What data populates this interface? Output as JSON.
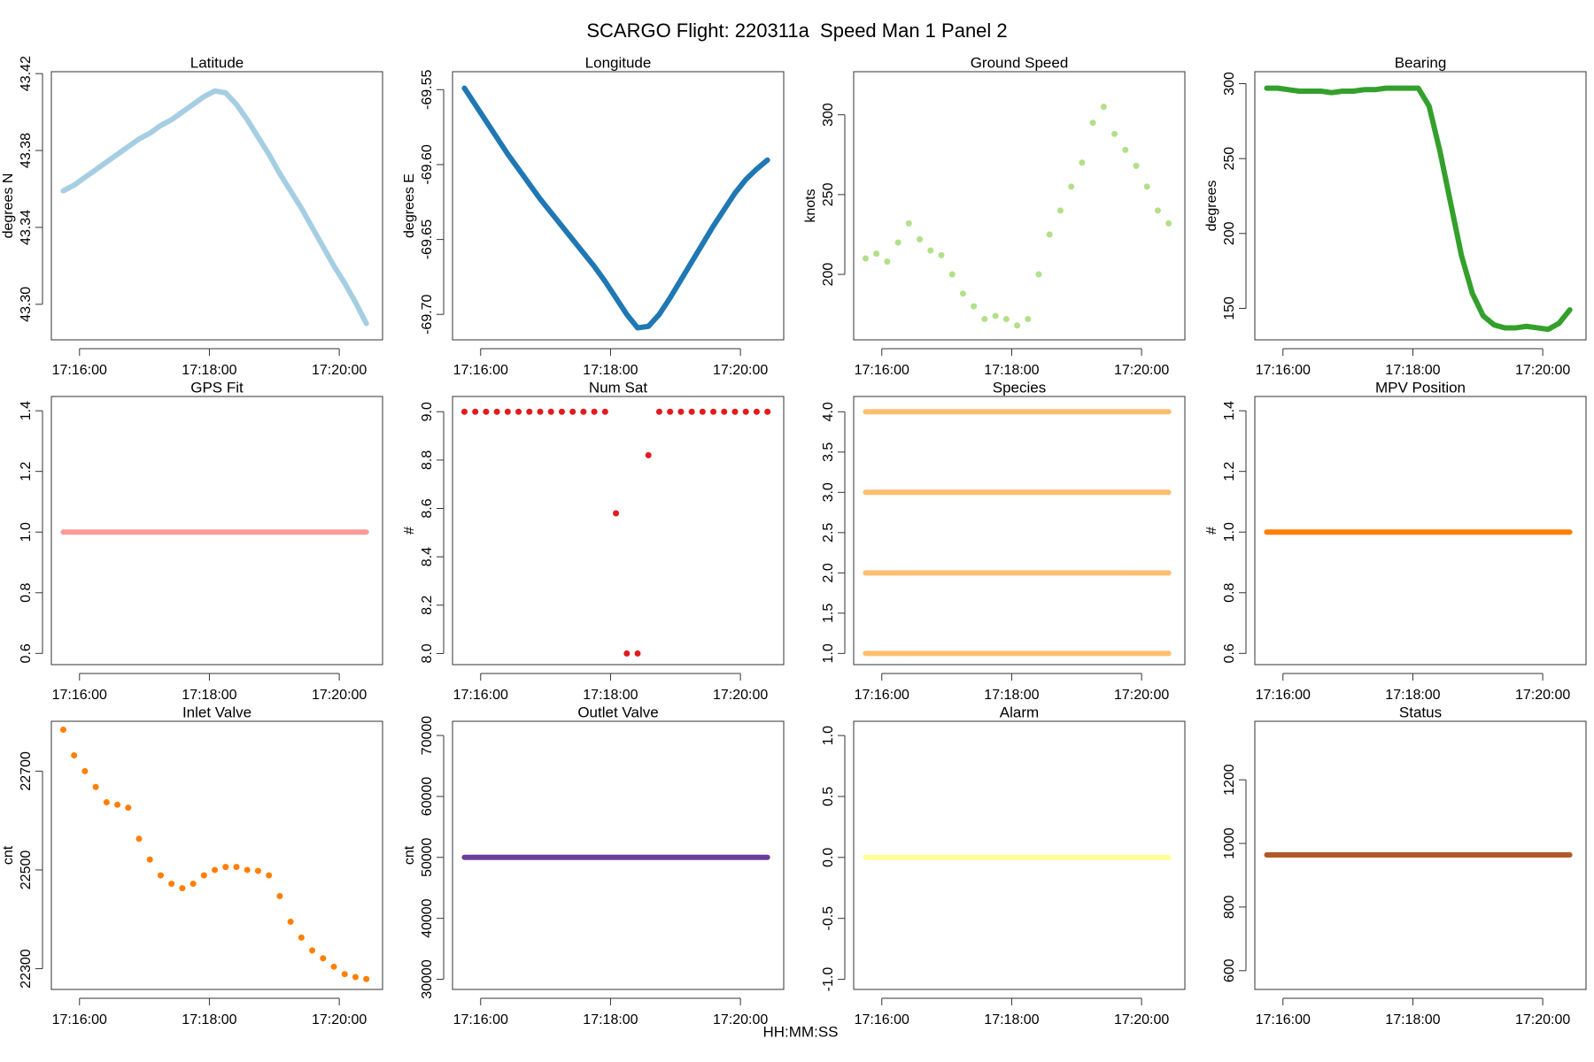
{
  "title": "SCARGO Flight: 220311a  Speed Man 1 Panel 2",
  "xlabel": "HH:MM:SS",
  "chart_data": [
    {
      "type": "line",
      "title": "Latitude",
      "ylabel": "degrees N",
      "color": "#a6cee3",
      "x": [
        "17:15:45",
        "17:15:55",
        "17:16:05",
        "17:16:15",
        "17:16:25",
        "17:16:35",
        "17:16:45",
        "17:16:55",
        "17:17:05",
        "17:17:15",
        "17:17:25",
        "17:17:35",
        "17:17:45",
        "17:17:55",
        "17:18:05",
        "17:18:15",
        "17:18:25",
        "17:18:35",
        "17:18:45",
        "17:18:55",
        "17:19:05",
        "17:19:15",
        "17:19:25",
        "17:19:35",
        "17:19:45",
        "17:19:55",
        "17:20:05",
        "17:20:15",
        "17:20:25"
      ],
      "values": [
        43.359,
        43.362,
        43.366,
        43.37,
        43.374,
        43.378,
        43.382,
        43.386,
        43.389,
        43.393,
        43.396,
        43.4,
        43.404,
        43.408,
        43.411,
        43.41,
        43.404,
        43.396,
        43.387,
        43.378,
        43.368,
        43.359,
        43.35,
        43.34,
        43.33,
        43.32,
        43.311,
        43.301,
        43.29
      ],
      "xlim": [
        "17:15:34",
        "17:20:40"
      ],
      "xticks": [
        "17:16:00",
        "17:18:00",
        "17:20:00"
      ],
      "ylim": [
        43.2815,
        43.421
      ],
      "yticks": [
        {
          "value": 43.3,
          "label": "43.30"
        },
        43.34,
        43.38,
        43.42
      ]
    },
    {
      "type": "line",
      "title": "Longitude",
      "ylabel": "degrees E",
      "color": "#1f78b4",
      "x": [
        "17:15:45",
        "17:15:55",
        "17:16:05",
        "17:16:15",
        "17:16:25",
        "17:16:35",
        "17:16:45",
        "17:16:55",
        "17:17:05",
        "17:17:15",
        "17:17:25",
        "17:17:35",
        "17:17:45",
        "17:17:55",
        "17:18:05",
        "17:18:15",
        "17:18:25",
        "17:18:35",
        "17:18:45",
        "17:18:55",
        "17:19:05",
        "17:19:15",
        "17:19:25",
        "17:19:35",
        "17:19:45",
        "17:19:55",
        "17:20:05",
        "17:20:15",
        "17:20:25"
      ],
      "values": [
        -69.549,
        -69.56,
        -69.571,
        -69.582,
        -69.593,
        -69.603,
        -69.613,
        -69.623,
        -69.632,
        -69.641,
        -69.65,
        -69.659,
        -69.668,
        -69.678,
        -69.689,
        -69.7,
        -69.709,
        -69.708,
        -69.7,
        -69.689,
        -69.677,
        -69.665,
        -69.653,
        -69.641,
        -69.63,
        -69.619,
        -69.61,
        -69.603,
        -69.597
      ],
      "xlim": [
        "17:15:34",
        "17:20:40"
      ],
      "xticks": [
        "17:16:00",
        "17:18:00",
        "17:20:00"
      ],
      "ylim": [
        -69.717,
        -69.538
      ],
      "yticks": [
        {
          "value": -69.7,
          "label": "-69.70"
        },
        -69.65,
        {
          "value": -69.6,
          "label": "-69.60"
        },
        -69.55
      ]
    },
    {
      "type": "scatter",
      "title": "Ground Speed",
      "ylabel": "knots",
      "color": "#b2df8a",
      "x": [
        "17:15:45",
        "17:15:55",
        "17:16:05",
        "17:16:15",
        "17:16:25",
        "17:16:35",
        "17:16:45",
        "17:16:55",
        "17:17:05",
        "17:17:15",
        "17:17:25",
        "17:17:35",
        "17:17:45",
        "17:17:55",
        "17:18:05",
        "17:18:15",
        "17:18:25",
        "17:18:35",
        "17:18:45",
        "17:18:55",
        "17:19:05",
        "17:19:15",
        "17:19:25",
        "17:19:35",
        "17:19:45",
        "17:19:55",
        "17:20:05",
        "17:20:15",
        "17:20:25"
      ],
      "values": [
        210,
        213,
        208,
        220,
        232,
        222,
        215,
        212,
        200,
        188,
        180,
        172,
        174,
        172,
        168,
        172,
        200,
        225,
        240,
        255,
        270,
        295,
        305,
        288,
        278,
        268,
        255,
        240,
        232
      ],
      "xlim": [
        "17:15:34",
        "17:20:40"
      ],
      "xticks": [
        "17:16:00",
        "17:18:00",
        "17:20:00"
      ],
      "ylim": [
        159,
        327
      ],
      "yticks": [
        200,
        250,
        300
      ]
    },
    {
      "type": "line",
      "title": "Bearing",
      "ylabel": "degrees",
      "color": "#33a02c",
      "x": [
        "17:15:45",
        "17:15:55",
        "17:16:05",
        "17:16:15",
        "17:16:25",
        "17:16:35",
        "17:16:45",
        "17:16:55",
        "17:17:05",
        "17:17:15",
        "17:17:25",
        "17:17:35",
        "17:17:45",
        "17:17:55",
        "17:18:05",
        "17:18:15",
        "17:18:25",
        "17:18:35",
        "17:18:45",
        "17:18:55",
        "17:19:05",
        "17:19:15",
        "17:19:25",
        "17:19:35",
        "17:19:45",
        "17:19:55",
        "17:20:05",
        "17:20:15",
        "17:20:25"
      ],
      "values": [
        297,
        297,
        296,
        295,
        295,
        295,
        294,
        295,
        295,
        296,
        296,
        297,
        297,
        297,
        297,
        285,
        255,
        220,
        185,
        160,
        145,
        139,
        137,
        137,
        138,
        137,
        136,
        140,
        149
      ],
      "xlim": [
        "17:15:34",
        "17:20:40"
      ],
      "xticks": [
        "17:16:00",
        "17:18:00",
        "17:20:00"
      ],
      "ylim": [
        129,
        308
      ],
      "yticks": [
        150,
        200,
        250,
        300
      ]
    },
    {
      "type": "line",
      "title": "GPS Fit",
      "color": "#fb9a99",
      "x": [
        "17:15:45",
        "17:15:55",
        "17:16:05",
        "17:16:15",
        "17:16:25",
        "17:16:35",
        "17:16:45",
        "17:16:55",
        "17:17:05",
        "17:17:15",
        "17:17:25",
        "17:17:35",
        "17:17:45",
        "17:17:55",
        "17:18:05",
        "17:18:15",
        "17:18:25",
        "17:18:35",
        "17:18:45",
        "17:18:55",
        "17:19:05",
        "17:19:15",
        "17:19:25",
        "17:19:35",
        "17:19:45",
        "17:19:55",
        "17:20:05",
        "17:20:15",
        "17:20:25"
      ],
      "values": [
        1,
        1,
        1,
        1,
        1,
        1,
        1,
        1,
        1,
        1,
        1,
        1,
        1,
        1,
        1,
        1,
        1,
        1,
        1,
        1,
        1,
        1,
        1,
        1,
        1,
        1,
        1,
        1,
        1
      ],
      "xlim": [
        "17:15:34",
        "17:20:40"
      ],
      "xticks": [
        "17:16:00",
        "17:18:00",
        "17:20:00"
      ],
      "ylim": [
        0.563,
        1.447
      ],
      "yticks": [
        0.6,
        0.8,
        {
          "value": 1,
          "label": "1.0"
        },
        1.2,
        1.4
      ]
    },
    {
      "type": "scatter",
      "title": "Num Sat",
      "ylabel": "#",
      "color": "#e31a1c",
      "x": [
        "17:15:45",
        "17:15:55",
        "17:16:05",
        "17:16:15",
        "17:16:25",
        "17:16:35",
        "17:16:45",
        "17:16:55",
        "17:17:05",
        "17:17:15",
        "17:17:25",
        "17:17:35",
        "17:17:45",
        "17:17:55",
        "17:18:05",
        "17:18:15",
        "17:18:25",
        "17:18:35",
        "17:18:45",
        "17:18:55",
        "17:19:05",
        "17:19:15",
        "17:19:25",
        "17:19:35",
        "17:19:45",
        "17:19:55",
        "17:20:05",
        "17:20:15",
        "17:20:25"
      ],
      "values": [
        9,
        9,
        9,
        9,
        9,
        9,
        9,
        9,
        9,
        9,
        9,
        9,
        9,
        9,
        8.58,
        8,
        8,
        8.82,
        9,
        9,
        9,
        9,
        9,
        9,
        9,
        9,
        9,
        9,
        9
      ],
      "xlim": [
        "17:15:34",
        "17:20:40"
      ],
      "xticks": [
        "17:16:00",
        "17:18:00",
        "17:20:00"
      ],
      "ylim": [
        7.954,
        9.063
      ],
      "yticks": [
        {
          "value": 8,
          "label": "8.0"
        },
        8.2,
        8.4,
        8.6,
        8.8,
        {
          "value": 9,
          "label": "9.0"
        }
      ]
    },
    {
      "type": "line",
      "title": "Species",
      "x": [
        "17:15:45",
        "17:15:55",
        "17:16:05",
        "17:16:15",
        "17:16:25",
        "17:16:35",
        "17:16:45",
        "17:16:55",
        "17:17:05",
        "17:17:15",
        "17:17:25",
        "17:17:35",
        "17:17:45",
        "17:17:55",
        "17:18:05",
        "17:18:15",
        "17:18:25",
        "17:18:35",
        "17:18:45",
        "17:18:55",
        "17:19:05",
        "17:19:15",
        "17:19:25",
        "17:19:35",
        "17:19:45",
        "17:19:55",
        "17:20:05",
        "17:20:15",
        "17:20:25"
      ],
      "series": [
        {
          "color": "#fdbf6f",
          "values": [
            1,
            1,
            1,
            1,
            1,
            1,
            1,
            1,
            1,
            1,
            1,
            1,
            1,
            1,
            1,
            1,
            1,
            1,
            1,
            1,
            1,
            1,
            1,
            1,
            1,
            1,
            1,
            1,
            1
          ]
        },
        {
          "color": "#fdbf6f",
          "values": [
            2,
            2,
            2,
            2,
            2,
            2,
            2,
            2,
            2,
            2,
            2,
            2,
            2,
            2,
            2,
            2,
            2,
            2,
            2,
            2,
            2,
            2,
            2,
            2,
            2,
            2,
            2,
            2,
            2
          ]
        },
        {
          "color": "#fdbf6f",
          "values": [
            3,
            3,
            3,
            3,
            3,
            3,
            3,
            3,
            3,
            3,
            3,
            3,
            3,
            3,
            3,
            3,
            3,
            3,
            3,
            3,
            3,
            3,
            3,
            3,
            3,
            3,
            3,
            3,
            3
          ]
        },
        {
          "color": "#fdbf6f",
          "values": [
            4,
            4,
            4,
            4,
            4,
            4,
            4,
            4,
            4,
            4,
            4,
            4,
            4,
            4,
            4,
            4,
            4,
            4,
            4,
            4,
            4,
            4,
            4,
            4,
            4,
            4,
            4,
            4,
            4
          ]
        }
      ],
      "xlim": [
        "17:15:34",
        "17:20:40"
      ],
      "xticks": [
        "17:16:00",
        "17:18:00",
        "17:20:00"
      ],
      "ylim": [
        0.861,
        4.19
      ],
      "yticks": [
        {
          "value": 1,
          "label": "1.0"
        },
        1.5,
        {
          "value": 2,
          "label": "2.0"
        },
        2.5,
        {
          "value": 3,
          "label": "3.0"
        },
        3.5,
        {
          "value": 4,
          "label": "4.0"
        }
      ]
    },
    {
      "type": "line",
      "title": "MPV Position",
      "ylabel": "#",
      "color": "#ff7f00",
      "x": [
        "17:15:45",
        "17:15:55",
        "17:16:05",
        "17:16:15",
        "17:16:25",
        "17:16:35",
        "17:16:45",
        "17:16:55",
        "17:17:05",
        "17:17:15",
        "17:17:25",
        "17:17:35",
        "17:17:45",
        "17:17:55",
        "17:18:05",
        "17:18:15",
        "17:18:25",
        "17:18:35",
        "17:18:45",
        "17:18:55",
        "17:19:05",
        "17:19:15",
        "17:19:25",
        "17:19:35",
        "17:19:45",
        "17:19:55",
        "17:20:05",
        "17:20:15",
        "17:20:25"
      ],
      "values": [
        1,
        1,
        1,
        1,
        1,
        1,
        1,
        1,
        1,
        1,
        1,
        1,
        1,
        1,
        1,
        1,
        1,
        1,
        1,
        1,
        1,
        1,
        1,
        1,
        1,
        1,
        1,
        1,
        1
      ],
      "xlim": [
        "17:15:34",
        "17:20:40"
      ],
      "xticks": [
        "17:16:00",
        "17:18:00",
        "17:20:00"
      ],
      "ylim": [
        0.563,
        1.447
      ],
      "yticks": [
        0.6,
        0.8,
        {
          "value": 1,
          "label": "1.0"
        },
        1.2,
        1.4
      ]
    },
    {
      "type": "scatter",
      "title": "Inlet Valve",
      "ylabel": "cnt",
      "color": "#ff7f00",
      "x": [
        "17:15:45",
        "17:15:55",
        "17:16:05",
        "17:16:15",
        "17:16:25",
        "17:16:35",
        "17:16:45",
        "17:16:55",
        "17:17:05",
        "17:17:15",
        "17:17:25",
        "17:17:35",
        "17:17:45",
        "17:17:55",
        "17:18:05",
        "17:18:15",
        "17:18:25",
        "17:18:35",
        "17:18:45",
        "17:18:55",
        "17:19:05",
        "17:19:15",
        "17:19:25",
        "17:19:35",
        "17:19:45",
        "17:19:55",
        "17:20:05",
        "17:20:15",
        "17:20:25"
      ],
      "values": [
        22784,
        22732,
        22700,
        22668,
        22637,
        22632,
        22626,
        22563,
        22521,
        22489,
        22472,
        22463,
        22472,
        22489,
        22500,
        22506,
        22506,
        22500,
        22498,
        22489,
        22447,
        22395,
        22363,
        22337,
        22321,
        22304,
        22289,
        22283,
        22279
      ],
      "xlim": [
        "17:15:34",
        "17:20:40"
      ],
      "xticks": [
        "17:16:00",
        "17:18:00",
        "17:20:00"
      ],
      "ylim": [
        22258,
        22801
      ],
      "yticks": [
        22300,
        22500,
        22700
      ]
    },
    {
      "type": "line",
      "title": "Outlet Valve",
      "ylabel": "cnt",
      "color": "#6a3d9a",
      "x": [
        "17:15:45",
        "17:15:55",
        "17:16:05",
        "17:16:15",
        "17:16:25",
        "17:16:35",
        "17:16:45",
        "17:16:55",
        "17:17:05",
        "17:17:15",
        "17:17:25",
        "17:17:35",
        "17:17:45",
        "17:17:55",
        "17:18:05",
        "17:18:15",
        "17:18:25",
        "17:18:35",
        "17:18:45",
        "17:18:55",
        "17:19:05",
        "17:19:15",
        "17:19:25",
        "17:19:35",
        "17:19:45",
        "17:19:55",
        "17:20:05",
        "17:20:15",
        "17:20:25"
      ],
      "values": [
        50000,
        50000,
        50000,
        50000,
        50000,
        50000,
        50000,
        50000,
        50000,
        50000,
        50000,
        50000,
        50000,
        50000,
        50000,
        50000,
        50000,
        50000,
        50000,
        50000,
        50000,
        50000,
        50000,
        50000,
        50000,
        50000,
        50000,
        50000,
        50000
      ],
      "xlim": [
        "17:15:34",
        "17:20:40"
      ],
      "xticks": [
        "17:16:00",
        "17:18:00",
        "17:20:00"
      ],
      "ylim": [
        28333,
        72333
      ],
      "yticks": [
        30000,
        40000,
        50000,
        60000,
        70000
      ]
    },
    {
      "type": "line",
      "title": "Alarm",
      "color": "#ffff99",
      "x": [
        "17:15:45",
        "17:15:55",
        "17:16:05",
        "17:16:15",
        "17:16:25",
        "17:16:35",
        "17:16:45",
        "17:16:55",
        "17:17:05",
        "17:17:15",
        "17:17:25",
        "17:17:35",
        "17:17:45",
        "17:17:55",
        "17:18:05",
        "17:18:15",
        "17:18:25",
        "17:18:35",
        "17:18:45",
        "17:18:55",
        "17:19:05",
        "17:19:15",
        "17:19:25",
        "17:19:35",
        "17:19:45",
        "17:19:55",
        "17:20:05",
        "17:20:15",
        "17:20:25"
      ],
      "values": [
        0,
        0,
        0,
        0,
        0,
        0,
        0,
        0,
        0,
        0,
        0,
        0,
        0,
        0,
        0,
        0,
        0,
        0,
        0,
        0,
        0,
        0,
        0,
        0,
        0,
        0,
        0,
        0,
        0
      ],
      "xlim": [
        "17:15:34",
        "17:20:40"
      ],
      "xticks": [
        "17:16:00",
        "17:18:00",
        "17:20:00"
      ],
      "ylim": [
        -1.083,
        1.117
      ],
      "yticks": [
        {
          "value": -1,
          "label": "-1.0"
        },
        -0.5,
        {
          "value": 0,
          "label": "0.0"
        },
        0.5,
        {
          "value": 1,
          "label": "1.0"
        }
      ]
    },
    {
      "type": "line",
      "title": "Status",
      "color": "#b15928",
      "x": [
        "17:15:45",
        "17:15:55",
        "17:16:05",
        "17:16:15",
        "17:16:25",
        "17:16:35",
        "17:16:45",
        "17:16:55",
        "17:17:05",
        "17:17:15",
        "17:17:25",
        "17:17:35",
        "17:17:45",
        "17:17:55",
        "17:18:05",
        "17:18:15",
        "17:18:25",
        "17:18:35",
        "17:18:45",
        "17:18:55",
        "17:19:05",
        "17:19:15",
        "17:19:25",
        "17:19:35",
        "17:19:45",
        "17:19:55",
        "17:20:05",
        "17:20:15",
        "17:20:25"
      ],
      "values": [
        964,
        964,
        964,
        964,
        964,
        964,
        964,
        964,
        964,
        964,
        964,
        964,
        964,
        964,
        964,
        964,
        964,
        964,
        964,
        964,
        964,
        964,
        964,
        964,
        964,
        964,
        964,
        964,
        964
      ],
      "xlim": [
        "17:15:34",
        "17:20:40"
      ],
      "xticks": [
        "17:16:00",
        "17:18:00",
        "17:20:00"
      ],
      "ylim": [
        541,
        1384
      ],
      "yticks": [
        600,
        800,
        1000,
        1200
      ]
    }
  ]
}
